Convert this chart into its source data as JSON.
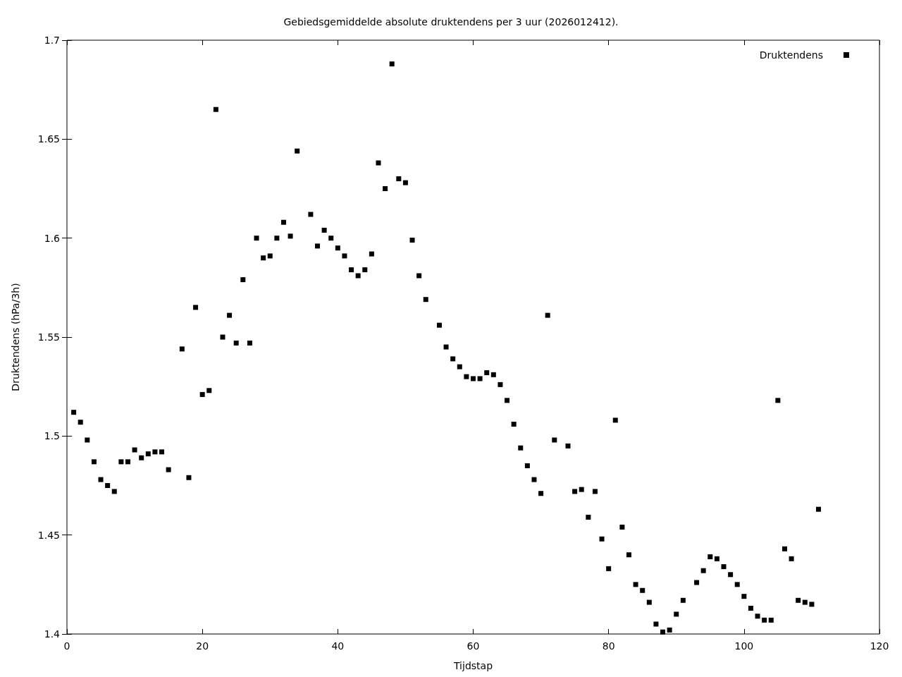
{
  "chart_data": {
    "type": "scatter",
    "title": "Gebiedsgemiddelde absolute druktendens per 3 uur (2026012412).",
    "xlabel": "Tijdstap",
    "ylabel": "Druktendens (hPa/3h)",
    "x": [
      1,
      2,
      3,
      4,
      5,
      6,
      7,
      8,
      9,
      10,
      11,
      12,
      13,
      14,
      15,
      17,
      18,
      19,
      20,
      21,
      22,
      23,
      24,
      25,
      26,
      27,
      28,
      29,
      30,
      31,
      32,
      33,
      34,
      36,
      37,
      38,
      39,
      40,
      41,
      42,
      43,
      44,
      45,
      46,
      47,
      48,
      49,
      50,
      51,
      52,
      53,
      55,
      56,
      57,
      58,
      59,
      60,
      61,
      62,
      63,
      64,
      65,
      66,
      67,
      68,
      69,
      70,
      71,
      72,
      74,
      75,
      76,
      77,
      78,
      79,
      80,
      81,
      82,
      83,
      84,
      85,
      86,
      87,
      88,
      89,
      90,
      91,
      93,
      94,
      95,
      96,
      97,
      98,
      99,
      100,
      101,
      102,
      103,
      104,
      105,
      106,
      107,
      108,
      109,
      110,
      111
    ],
    "series": [
      {
        "name": "Druktendens",
        "color": "#000000",
        "values": [
          1.512,
          1.507,
          1.498,
          1.487,
          1.478,
          1.475,
          1.472,
          1.487,
          1.487,
          1.493,
          1.489,
          1.491,
          1.492,
          1.492,
          1.483,
          1.544,
          1.479,
          1.565,
          1.521,
          1.523,
          1.665,
          1.55,
          1.561,
          1.547,
          1.579,
          1.547,
          1.6,
          1.59,
          1.591,
          1.6,
          1.608,
          1.601,
          1.644,
          1.612,
          1.596,
          1.604,
          1.6,
          1.595,
          1.591,
          1.584,
          1.581,
          1.584,
          1.592,
          1.638,
          1.625,
          1.688,
          1.63,
          1.628,
          1.599,
          1.581,
          1.569,
          1.556,
          1.545,
          1.539,
          1.535,
          1.53,
          1.529,
          1.529,
          1.532,
          1.531,
          1.526,
          1.518,
          1.506,
          1.494,
          1.485,
          1.478,
          1.471,
          1.561,
          1.498,
          1.495,
          1.472,
          1.473,
          1.459,
          1.472,
          1.448,
          1.433,
          1.508,
          1.454,
          1.44,
          1.425,
          1.422,
          1.416,
          1.405,
          1.401,
          1.402,
          1.41,
          1.417,
          1.426,
          1.432,
          1.439,
          1.438,
          1.434,
          1.43,
          1.425,
          1.419,
          1.413,
          1.409,
          1.407,
          1.407,
          1.518,
          1.443,
          1.438,
          1.417,
          1.416,
          1.415,
          1.463
        ]
      }
    ],
    "xlim": [
      0,
      120
    ],
    "xticks": [
      0,
      20,
      40,
      60,
      80,
      100,
      120
    ],
    "ylim": [
      1.4,
      1.7
    ],
    "yticks": [
      1.4,
      1.45,
      1.5,
      1.55,
      1.6,
      1.65,
      1.7
    ],
    "legend": "top right",
    "marker": "square"
  }
}
